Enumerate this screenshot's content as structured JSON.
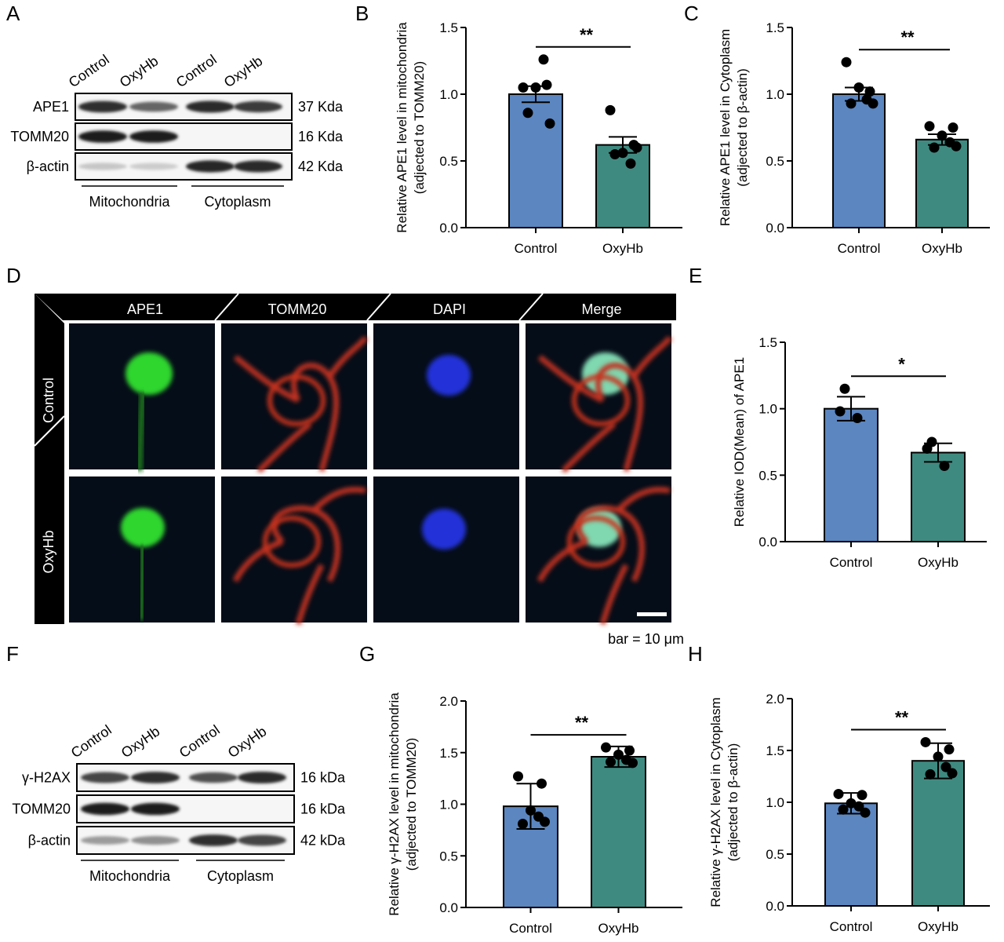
{
  "panels": {
    "A": "A",
    "B": "B",
    "C": "C",
    "D": "D",
    "E": "E",
    "F": "F",
    "G": "G",
    "H": "H"
  },
  "blotA": {
    "lanes": [
      "Control",
      "OxyHb",
      "Control",
      "OxyHb"
    ],
    "rows": [
      {
        "name": "APE1",
        "size": "37 Kda",
        "intensity": [
          0.85,
          0.6,
          0.88,
          0.8
        ]
      },
      {
        "name": "TOMM20",
        "size": "16 Kda",
        "intensity": [
          0.95,
          0.95,
          0.0,
          0.0
        ]
      },
      {
        "name": "β-actin",
        "size": "42 Kda",
        "intensity": [
          0.15,
          0.12,
          0.9,
          0.88
        ]
      }
    ],
    "groups": [
      "Mitochondria",
      "Cytoplasm"
    ]
  },
  "blotF": {
    "lanes": [
      "Control",
      "OxyHb",
      "Control",
      "OxyHb"
    ],
    "rows": [
      {
        "name": "γ-H2AX",
        "size": "16 kDa",
        "intensity": [
          0.75,
          0.85,
          0.7,
          0.88
        ]
      },
      {
        "name": "TOMM20",
        "size": "16 kDa",
        "intensity": [
          0.95,
          0.95,
          0.0,
          0.0
        ]
      },
      {
        "name": "β-actin",
        "size": "42 kDa",
        "intensity": [
          0.35,
          0.4,
          0.85,
          0.75
        ]
      }
    ],
    "groups": [
      "Mitochondria",
      "Cytoplasm"
    ]
  },
  "micrograph": {
    "columns": [
      "APE1",
      "TOMM20",
      "DAPI",
      "Merge"
    ],
    "column_colors": [
      "#28c828",
      "#c8281e",
      "#1e1eb4",
      "#ffffff"
    ],
    "rows": [
      "Control",
      "OxyHb"
    ],
    "scale_bar": "bar = 10 μm"
  },
  "chart_data": [
    {
      "panel": "B",
      "type": "bar",
      "categories": [
        "Control",
        "OxyHb"
      ],
      "values": [
        1.0,
        0.62
      ],
      "errors": [
        0.06,
        0.06
      ],
      "points": [
        [
          1.05,
          1.07,
          1.05,
          1.26,
          0.86,
          0.78
        ],
        [
          0.88,
          0.62,
          0.56,
          0.48,
          0.55,
          0.6
        ]
      ],
      "ylabel": "Relative APE1 level in mitochondria",
      "ylabel2": "(adjected to TOMM20)",
      "ylim": [
        0,
        1.5
      ],
      "yticks": [
        "0.0",
        "0.5",
        "1.0",
        "1.5"
      ],
      "significance": "**"
    },
    {
      "panel": "C",
      "type": "bar",
      "categories": [
        "Control",
        "OxyHb"
      ],
      "values": [
        1.0,
        0.66
      ],
      "errors": [
        0.05,
        0.04
      ],
      "points": [
        [
          1.24,
          1.02,
          1.05,
          0.96,
          0.93,
          0.93
        ],
        [
          0.76,
          0.75,
          0.69,
          0.64,
          0.6,
          0.61
        ]
      ],
      "ylabel": "Relative APE1 level in Cytoplasm",
      "ylabel2": "(adjected to β-actin)",
      "ylim": [
        0,
        1.5
      ],
      "yticks": [
        "0.0",
        "0.5",
        "1.0",
        "1.5"
      ],
      "significance": "**"
    },
    {
      "panel": "E",
      "type": "bar",
      "categories": [
        "Control",
        "OxyHb"
      ],
      "values": [
        1.0,
        0.67
      ],
      "errors": [
        0.09,
        0.07
      ],
      "points": [
        [
          1.15,
          0.98,
          0.93
        ],
        [
          0.75,
          0.7,
          0.57
        ]
      ],
      "ylabel": "Relative IOD(Mean) of APE1",
      "ylabel2": "",
      "ylim": [
        0,
        1.5
      ],
      "yticks": [
        "0.0",
        "0.5",
        "1.0",
        "1.5"
      ],
      "significance": "*"
    },
    {
      "panel": "G",
      "type": "bar",
      "categories": [
        "Control",
        "OxyHb"
      ],
      "values": [
        0.98,
        1.46
      ],
      "errors": [
        0.22,
        0.1
      ],
      "points": [
        [
          1.27,
          1.2,
          0.94,
          0.88,
          0.81,
          0.83
        ],
        [
          1.55,
          1.52,
          1.48,
          1.43,
          1.41,
          1.4
        ]
      ],
      "ylabel": "Relative γ-H2AX level in mitochondria",
      "ylabel2": "(adjected to TOMM20)",
      "ylim": [
        0,
        2.0
      ],
      "yticks": [
        "0.0",
        "0.5",
        "1.0",
        "1.5",
        "2.0"
      ],
      "significance": "**"
    },
    {
      "panel": "H",
      "type": "bar",
      "categories": [
        "Control",
        "OxyHb"
      ],
      "values": [
        0.99,
        1.4
      ],
      "errors": [
        0.1,
        0.17
      ],
      "points": [
        [
          1.08,
          1.07,
          0.99,
          0.96,
          0.93,
          0.9
        ],
        [
          1.58,
          1.51,
          1.44,
          1.34,
          1.27,
          1.28
        ]
      ],
      "ylabel": "Relative γ-H2AX level in Cytoplasm",
      "ylabel2": "(adjected to β-actin)",
      "ylim": [
        0,
        2.0
      ],
      "yticks": [
        "0.0",
        "0.5",
        "1.0",
        "1.5",
        "2.0"
      ],
      "significance": "**"
    }
  ],
  "colors": {
    "control_bar": "#5b86c0",
    "oxyhb_bar": "#3f8a80",
    "micro_bg": "#050d18",
    "header_bg": "#000000"
  }
}
